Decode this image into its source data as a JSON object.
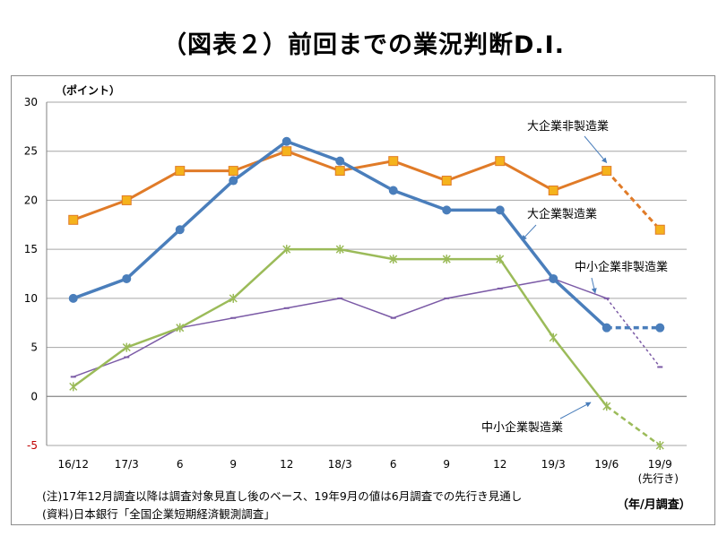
{
  "title": "（図表２）前回までの業況判断D.I.",
  "notes": {
    "note1": "(注)17年12月調査以降は調査対象見直し後のベース、19年9月の値は6月調査での先行き見通し",
    "note2": "(資料)日本銀行「全国企業短期経済観測調査」"
  },
  "colors": {
    "large_nonmfg": "#E07B28",
    "large_nonmfg_marker": "#F5B31C",
    "large_mfg": "#4A7EBB",
    "sme_mfg": "#9BBB59",
    "sme_nonmfg": "#7B5AA6",
    "grid": "#A6A6A6"
  },
  "chart_data": {
    "type": "line",
    "title": "（図表２）前回までの業況判断D.I.",
    "ylabel": "（ポイント）",
    "xlabel": "（年/月調査）",
    "ylim": [
      -5,
      30
    ],
    "yticks": [
      -5,
      0,
      5,
      10,
      15,
      20,
      25,
      30
    ],
    "grid": true,
    "categories": [
      "16/12",
      "17/3",
      "6",
      "9",
      "12",
      "18/3",
      "6",
      "9",
      "12",
      "19/3",
      "19/6",
      "19/9"
    ],
    "forecast_label": "(先行き)",
    "series": [
      {
        "name": "大企業非製造業",
        "key": "large_nonmfg",
        "values": [
          18,
          20,
          23,
          23,
          25,
          23,
          24,
          22,
          24,
          21,
          23,
          17
        ],
        "forecast_from": 10
      },
      {
        "name": "大企業製造業",
        "key": "large_mfg",
        "values": [
          10,
          12,
          17,
          22,
          26,
          24,
          21,
          19,
          19,
          12,
          7,
          7
        ],
        "forecast_from": 10
      },
      {
        "name": "中小企業非製造業",
        "key": "sme_nonmfg",
        "values": [
          2,
          4,
          7,
          8,
          9,
          10,
          8,
          10,
          11,
          12,
          10,
          3
        ],
        "forecast_from": 10
      },
      {
        "name": "中小企業製造業",
        "key": "sme_mfg",
        "values": [
          1,
          5,
          7,
          10,
          15,
          15,
          14,
          14,
          14,
          6,
          -1,
          -5
        ],
        "forecast_from": 10
      }
    ]
  }
}
